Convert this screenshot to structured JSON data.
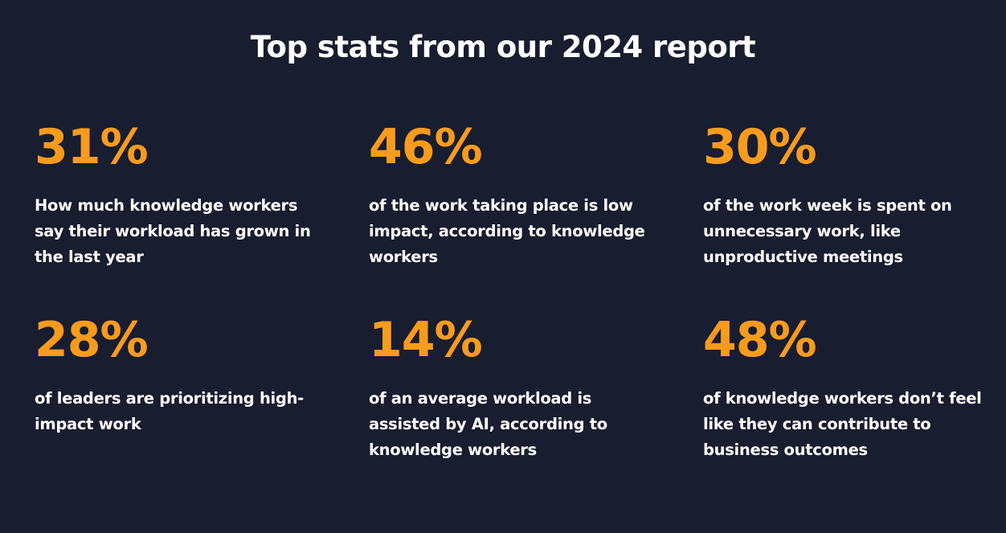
{
  "title": "Top stats from our 2024 report",
  "colors": {
    "background": "#181d2f",
    "accent": "#f99b1c",
    "text": "#ffffff"
  },
  "stats": [
    {
      "value": "31%",
      "lines": [
        "How much knowledge workers",
        "say their workload has grown in",
        "the last year"
      ]
    },
    {
      "value": "46%",
      "lines": [
        "of the work taking place is low",
        "impact, according to knowledge",
        "workers"
      ]
    },
    {
      "value": "30%",
      "lines": [
        "of the work week is spent on",
        "unnecessary work, like",
        "unproductive meetings"
      ]
    },
    {
      "value": "28%",
      "lines": [
        "of leaders are prioritizing high-",
        "impact work"
      ]
    },
    {
      "value": "14%",
      "lines": [
        "of an average workload is",
        "assisted by AI, according to",
        "knowledge workers"
      ]
    },
    {
      "value": "48%",
      "lines": [
        "of knowledge workers don’t feel",
        "like they can contribute to",
        "business outcomes"
      ]
    }
  ]
}
